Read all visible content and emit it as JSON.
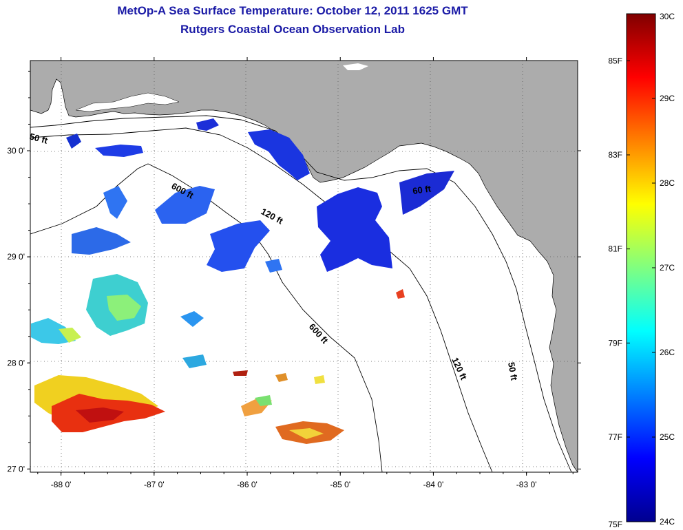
{
  "title": {
    "line1": "MetOp-A Sea Surface Temperature:  October 12, 2011 1625 GMT",
    "line2": "Rutgers Coastal Ocean Observation Lab"
  },
  "map": {
    "lon_range": [
      -88.33,
      -82.45
    ],
    "lat_range": [
      26.97,
      30.85
    ],
    "lon_ticks": [
      {
        "value": -88,
        "label": "-88 0'"
      },
      {
        "value": -87,
        "label": "-87 0'"
      },
      {
        "value": -86,
        "label": "-86 0'"
      },
      {
        "value": -85,
        "label": "-85 0'"
      },
      {
        "value": -84,
        "label": "-84 0'"
      },
      {
        "value": -83,
        "label": "-83 0'"
      }
    ],
    "lat_ticks": [
      {
        "value": 30,
        "label": "30 0'"
      },
      {
        "value": 29,
        "label": "29 0'"
      },
      {
        "value": 28,
        "label": "28 0'"
      },
      {
        "value": 27,
        "label": "27 0'"
      }
    ],
    "grid": "dotted",
    "land_color": "#acacac",
    "ocean_color": "#ffffff"
  },
  "depth_labels": [
    "50 ft",
    "600 ft",
    "120 ft",
    "60 ft",
    "600 ft",
    "120 ft",
    "50 ft"
  ],
  "colorbar": {
    "colors": [
      "#00008f",
      "#0000ff",
      "#0080ff",
      "#00ffff",
      "#80ff80",
      "#ffff00",
      "#ff8000",
      "#ff0000",
      "#800000"
    ],
    "celsius_labels": [
      {
        "value": 30,
        "label": "30C"
      },
      {
        "value": 29,
        "label": "29C"
      },
      {
        "value": 28,
        "label": "28C"
      },
      {
        "value": 27,
        "label": "27C"
      },
      {
        "value": 26,
        "label": "26C"
      },
      {
        "value": 25,
        "label": "25C"
      },
      {
        "value": 24,
        "label": "24C"
      }
    ],
    "fahrenheit_labels": [
      {
        "value": 85,
        "label": "85F"
      },
      {
        "value": 83,
        "label": "83F"
      },
      {
        "value": 81,
        "label": "81F"
      },
      {
        "value": 79,
        "label": "79F"
      },
      {
        "value": 77,
        "label": "77F"
      },
      {
        "value": 75,
        "label": "75F"
      }
    ],
    "range_c": [
      24,
      30
    ]
  }
}
